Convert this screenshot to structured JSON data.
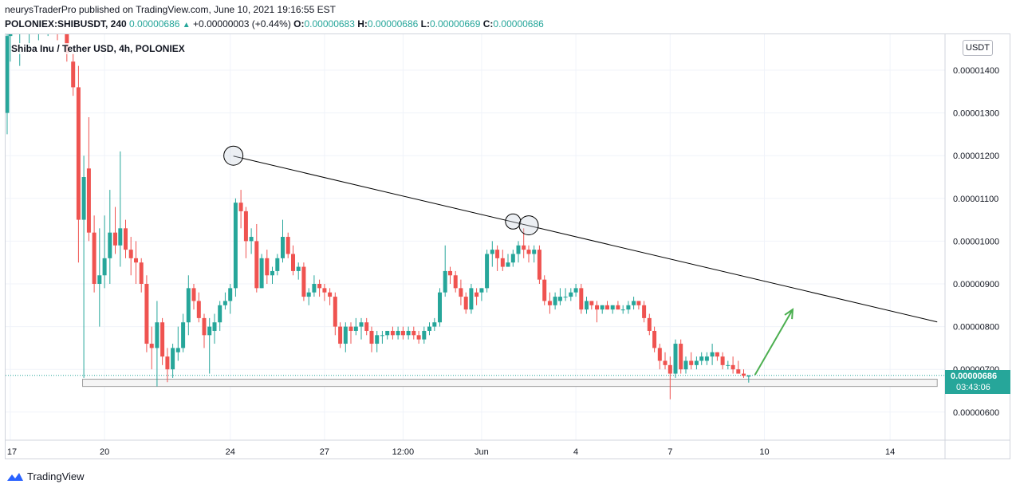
{
  "header": {
    "published_line": "neurysTraderPro published on TradingView.com, June 10, 2021 19:16:55 EST",
    "symbol": "POLONIEX:SHIBUSDT, 240",
    "last": "0.00000686",
    "change": "+0.00000003 (+0.44%)",
    "o_label": "O:",
    "o": "0.00000683",
    "h_label": "H:",
    "h": "0.00000686",
    "l_label": "L:",
    "l": "0.00000669",
    "c_label": "C:",
    "c": "0.00000686"
  },
  "legend": {
    "title": "Shiba Inu / Tether USD, 4h, POLONIEX"
  },
  "price_scale": {
    "currency": "USDT",
    "last_price": "0.00000686",
    "countdown": "03:43:06"
  },
  "footer": {
    "brand": "TradingView"
  },
  "colors": {
    "up": "#26a69a",
    "down": "#ef5350",
    "arrow": "#4caf50",
    "line": "#000000"
  },
  "chart_data": {
    "type": "candlestick",
    "title": "Shiba Inu / Tether USD, 4h, POLONIEX",
    "ylim": [
      5.5e-06,
      1.51e-05
    ],
    "y_ticks": [
      "0.00001400",
      "0.00001300",
      "0.00001200",
      "0.00001100",
      "0.00001000",
      "0.00000900",
      "0.00000800",
      "0.00000700",
      "0.00000600"
    ],
    "y_tick_values": [
      1.4e-05,
      1.3e-05,
      1.2e-05,
      1.1e-05,
      1e-05,
      9e-06,
      8e-06,
      7e-06,
      6e-06
    ],
    "x_ticks": [
      {
        "label": "17",
        "day": 17
      },
      {
        "label": "20",
        "day": 20
      },
      {
        "label": "24",
        "day": 24
      },
      {
        "label": "27",
        "day": 27
      },
      {
        "label": "12:00",
        "day": 29.5
      },
      {
        "label": "Jun",
        "day": 32
      },
      {
        "label": "4",
        "day": 35
      },
      {
        "label": "7",
        "day": 38
      },
      {
        "label": "10",
        "day": 41
      },
      {
        "label": "14",
        "day": 45
      }
    ],
    "day_start": 16.85,
    "candles": [
      {
        "d": 16.9,
        "o": 1.3,
        "h": 1.49,
        "l": 1.25,
        "c": 1.48
      },
      {
        "d": 17.0,
        "o": 1.48,
        "h": 1.52,
        "l": 1.42,
        "c": 1.5
      },
      {
        "d": 17.3,
        "o": 1.49,
        "h": 1.52,
        "l": 1.41,
        "c": 1.5
      },
      {
        "d": 17.6,
        "o": 1.5,
        "h": 1.53,
        "l": 1.45,
        "c": 1.51
      },
      {
        "d": 17.9,
        "o": 1.5,
        "h": 1.53,
        "l": 1.47,
        "c": 1.52
      },
      {
        "d": 18.2,
        "o": 1.51,
        "h": 1.54,
        "l": 1.48,
        "c": 1.52
      },
      {
        "d": 18.5,
        "o": 1.52,
        "h": 1.55,
        "l": 1.47,
        "c": 1.51
      },
      {
        "d": 18.8,
        "o": 1.5,
        "h": 1.52,
        "l": 1.42,
        "c": 1.44
      },
      {
        "d": 19.0,
        "o": 1.42,
        "h": 1.44,
        "l": 1.34,
        "c": 1.36
      },
      {
        "d": 19.17,
        "o": 1.36,
        "h": 1.41,
        "l": 0.95,
        "c": 1.05
      },
      {
        "d": 19.34,
        "o": 1.05,
        "h": 1.2,
        "l": 0.68,
        "c": 1.15
      },
      {
        "d": 19.5,
        "o": 1.17,
        "h": 1.29,
        "l": 1.0,
        "c": 1.02
      },
      {
        "d": 19.67,
        "o": 1.02,
        "h": 1.06,
        "l": 0.88,
        "c": 0.9
      },
      {
        "d": 19.84,
        "o": 0.9,
        "h": 1.03,
        "l": 0.8,
        "c": 0.92
      },
      {
        "d": 20.0,
        "o": 0.92,
        "h": 1.06,
        "l": 0.89,
        "c": 0.96
      },
      {
        "d": 20.17,
        "o": 0.96,
        "h": 1.12,
        "l": 0.9,
        "c": 1.02
      },
      {
        "d": 20.34,
        "o": 1.02,
        "h": 1.08,
        "l": 0.97,
        "c": 0.99
      },
      {
        "d": 20.5,
        "o": 0.99,
        "h": 1.21,
        "l": 0.94,
        "c": 1.03
      },
      {
        "d": 20.67,
        "o": 1.03,
        "h": 1.05,
        "l": 0.96,
        "c": 0.98
      },
      {
        "d": 20.84,
        "o": 0.98,
        "h": 1.01,
        "l": 0.92,
        "c": 0.96
      },
      {
        "d": 21.0,
        "o": 0.96,
        "h": 1.0,
        "l": 0.9,
        "c": 0.95
      },
      {
        "d": 21.17,
        "o": 0.95,
        "h": 0.96,
        "l": 0.88,
        "c": 0.9
      },
      {
        "d": 21.34,
        "o": 0.9,
        "h": 0.92,
        "l": 0.74,
        "c": 0.76
      },
      {
        "d": 21.5,
        "o": 0.76,
        "h": 0.8,
        "l": 0.7,
        "c": 0.75
      },
      {
        "d": 21.67,
        "o": 0.75,
        "h": 0.86,
        "l": 0.66,
        "c": 0.81
      },
      {
        "d": 21.84,
        "o": 0.81,
        "h": 0.82,
        "l": 0.71,
        "c": 0.73
      },
      {
        "d": 22.0,
        "o": 0.73,
        "h": 0.75,
        "l": 0.67,
        "c": 0.7
      },
      {
        "d": 22.17,
        "o": 0.7,
        "h": 0.76,
        "l": 0.68,
        "c": 0.75
      },
      {
        "d": 22.34,
        "o": 0.74,
        "h": 0.8,
        "l": 0.72,
        "c": 0.75
      },
      {
        "d": 22.5,
        "o": 0.75,
        "h": 0.83,
        "l": 0.74,
        "c": 0.81
      },
      {
        "d": 22.67,
        "o": 0.81,
        "h": 0.92,
        "l": 0.78,
        "c": 0.89
      },
      {
        "d": 22.84,
        "o": 0.89,
        "h": 0.9,
        "l": 0.84,
        "c": 0.86
      },
      {
        "d": 23.0,
        "o": 0.86,
        "h": 0.88,
        "l": 0.81,
        "c": 0.82
      },
      {
        "d": 23.17,
        "o": 0.82,
        "h": 0.83,
        "l": 0.75,
        "c": 0.78
      },
      {
        "d": 23.34,
        "o": 0.78,
        "h": 0.82,
        "l": 0.69,
        "c": 0.8
      },
      {
        "d": 23.5,
        "o": 0.79,
        "h": 0.83,
        "l": 0.76,
        "c": 0.81
      },
      {
        "d": 23.67,
        "o": 0.81,
        "h": 0.86,
        "l": 0.79,
        "c": 0.85
      },
      {
        "d": 23.84,
        "o": 0.85,
        "h": 0.88,
        "l": 0.84,
        "c": 0.86
      },
      {
        "d": 24.0,
        "o": 0.86,
        "h": 0.9,
        "l": 0.83,
        "c": 0.89
      },
      {
        "d": 24.17,
        "o": 0.89,
        "h": 1.1,
        "l": 0.87,
        "c": 1.09
      },
      {
        "d": 24.34,
        "o": 1.09,
        "h": 1.12,
        "l": 1.03,
        "c": 1.07
      },
      {
        "d": 24.5,
        "o": 1.07,
        "h": 1.08,
        "l": 0.96,
        "c": 1.0
      },
      {
        "d": 24.67,
        "o": 1.0,
        "h": 1.03,
        "l": 0.97,
        "c": 1.01
      },
      {
        "d": 24.84,
        "o": 1.0,
        "h": 1.04,
        "l": 0.88,
        "c": 0.89
      },
      {
        "d": 25.0,
        "o": 0.89,
        "h": 0.97,
        "l": 0.89,
        "c": 0.96
      },
      {
        "d": 25.17,
        "o": 0.96,
        "h": 0.98,
        "l": 0.9,
        "c": 0.92
      },
      {
        "d": 25.34,
        "o": 0.92,
        "h": 0.94,
        "l": 0.9,
        "c": 0.93
      },
      {
        "d": 25.5,
        "o": 0.93,
        "h": 0.97,
        "l": 0.92,
        "c": 0.96
      },
      {
        "d": 25.67,
        "o": 0.96,
        "h": 1.05,
        "l": 0.95,
        "c": 1.01
      },
      {
        "d": 25.84,
        "o": 1.01,
        "h": 1.02,
        "l": 0.96,
        "c": 0.97
      },
      {
        "d": 26.0,
        "o": 0.97,
        "h": 0.99,
        "l": 0.92,
        "c": 0.93
      },
      {
        "d": 26.17,
        "o": 0.93,
        "h": 0.95,
        "l": 0.91,
        "c": 0.94
      },
      {
        "d": 26.34,
        "o": 0.94,
        "h": 0.95,
        "l": 0.86,
        "c": 0.87
      },
      {
        "d": 26.5,
        "o": 0.87,
        "h": 0.89,
        "l": 0.85,
        "c": 0.88
      },
      {
        "d": 26.67,
        "o": 0.88,
        "h": 0.92,
        "l": 0.87,
        "c": 0.9
      },
      {
        "d": 26.84,
        "o": 0.9,
        "h": 0.91,
        "l": 0.87,
        "c": 0.89
      },
      {
        "d": 27.0,
        "o": 0.89,
        "h": 0.9,
        "l": 0.86,
        "c": 0.88
      },
      {
        "d": 27.17,
        "o": 0.88,
        "h": 0.89,
        "l": 0.85,
        "c": 0.87
      },
      {
        "d": 27.34,
        "o": 0.87,
        "h": 0.88,
        "l": 0.78,
        "c": 0.8
      },
      {
        "d": 27.5,
        "o": 0.8,
        "h": 0.81,
        "l": 0.75,
        "c": 0.76
      },
      {
        "d": 27.67,
        "o": 0.76,
        "h": 0.81,
        "l": 0.74,
        "c": 0.8
      },
      {
        "d": 27.84,
        "o": 0.8,
        "h": 0.81,
        "l": 0.76,
        "c": 0.79
      },
      {
        "d": 28.0,
        "o": 0.79,
        "h": 0.82,
        "l": 0.78,
        "c": 0.8
      },
      {
        "d": 28.17,
        "o": 0.8,
        "h": 0.82,
        "l": 0.77,
        "c": 0.81
      },
      {
        "d": 28.34,
        "o": 0.81,
        "h": 0.82,
        "l": 0.78,
        "c": 0.79
      },
      {
        "d": 28.5,
        "o": 0.79,
        "h": 0.8,
        "l": 0.74,
        "c": 0.76
      },
      {
        "d": 28.67,
        "o": 0.76,
        "h": 0.79,
        "l": 0.74,
        "c": 0.78
      },
      {
        "d": 28.84,
        "o": 0.78,
        "h": 0.79,
        "l": 0.76,
        "c": 0.78
      },
      {
        "d": 29.0,
        "o": 0.78,
        "h": 0.79,
        "l": 0.77,
        "c": 0.79
      },
      {
        "d": 29.17,
        "o": 0.79,
        "h": 0.8,
        "l": 0.77,
        "c": 0.78
      },
      {
        "d": 29.34,
        "o": 0.78,
        "h": 0.8,
        "l": 0.77,
        "c": 0.79
      },
      {
        "d": 29.5,
        "o": 0.79,
        "h": 0.8,
        "l": 0.77,
        "c": 0.78
      },
      {
        "d": 29.67,
        "o": 0.78,
        "h": 0.8,
        "l": 0.77,
        "c": 0.79
      },
      {
        "d": 29.84,
        "o": 0.79,
        "h": 0.8,
        "l": 0.77,
        "c": 0.78
      },
      {
        "d": 30.0,
        "o": 0.78,
        "h": 0.79,
        "l": 0.76,
        "c": 0.77
      },
      {
        "d": 30.17,
        "o": 0.77,
        "h": 0.8,
        "l": 0.76,
        "c": 0.79
      },
      {
        "d": 30.34,
        "o": 0.79,
        "h": 0.81,
        "l": 0.78,
        "c": 0.8
      },
      {
        "d": 30.5,
        "o": 0.8,
        "h": 0.82,
        "l": 0.79,
        "c": 0.81
      },
      {
        "d": 30.67,
        "o": 0.81,
        "h": 0.89,
        "l": 0.8,
        "c": 0.88
      },
      {
        "d": 30.84,
        "o": 0.88,
        "h": 0.99,
        "l": 0.87,
        "c": 0.93
      },
      {
        "d": 31.0,
        "o": 0.93,
        "h": 0.94,
        "l": 0.9,
        "c": 0.92
      },
      {
        "d": 31.17,
        "o": 0.92,
        "h": 0.93,
        "l": 0.88,
        "c": 0.89
      },
      {
        "d": 31.34,
        "o": 0.89,
        "h": 0.91,
        "l": 0.85,
        "c": 0.87
      },
      {
        "d": 31.5,
        "o": 0.87,
        "h": 0.88,
        "l": 0.83,
        "c": 0.84
      },
      {
        "d": 31.67,
        "o": 0.84,
        "h": 0.9,
        "l": 0.83,
        "c": 0.89
      },
      {
        "d": 31.84,
        "o": 0.88,
        "h": 0.89,
        "l": 0.85,
        "c": 0.87
      },
      {
        "d": 32.0,
        "o": 0.88,
        "h": 0.89,
        "l": 0.86,
        "c": 0.89
      },
      {
        "d": 32.17,
        "o": 0.89,
        "h": 0.98,
        "l": 0.88,
        "c": 0.97
      },
      {
        "d": 32.34,
        "o": 0.97,
        "h": 1.0,
        "l": 0.94,
        "c": 0.98
      },
      {
        "d": 32.5,
        "o": 0.98,
        "h": 0.99,
        "l": 0.93,
        "c": 0.96
      },
      {
        "d": 32.67,
        "o": 0.96,
        "h": 0.98,
        "l": 0.93,
        "c": 0.94
      },
      {
        "d": 32.84,
        "o": 0.94,
        "h": 0.97,
        "l": 0.94,
        "c": 0.95
      },
      {
        "d": 33.0,
        "o": 0.95,
        "h": 0.98,
        "l": 0.94,
        "c": 0.97
      },
      {
        "d": 33.17,
        "o": 0.97,
        "h": 1.0,
        "l": 0.95,
        "c": 0.99
      },
      {
        "d": 33.34,
        "o": 0.99,
        "h": 1.03,
        "l": 0.96,
        "c": 0.98
      },
      {
        "d": 33.5,
        "o": 0.98,
        "h": 0.99,
        "l": 0.95,
        "c": 0.97
      },
      {
        "d": 33.67,
        "o": 0.97,
        "h": 0.99,
        "l": 0.95,
        "c": 0.98
      },
      {
        "d": 33.84,
        "o": 0.98,
        "h": 0.99,
        "l": 0.9,
        "c": 0.91
      },
      {
        "d": 34.0,
        "o": 0.91,
        "h": 0.92,
        "l": 0.85,
        "c": 0.86
      },
      {
        "d": 34.17,
        "o": 0.86,
        "h": 0.88,
        "l": 0.83,
        "c": 0.85
      },
      {
        "d": 34.34,
        "o": 0.85,
        "h": 0.88,
        "l": 0.84,
        "c": 0.87
      },
      {
        "d": 34.5,
        "o": 0.86,
        "h": 0.89,
        "l": 0.85,
        "c": 0.87
      },
      {
        "d": 34.67,
        "o": 0.87,
        "h": 0.89,
        "l": 0.86,
        "c": 0.87
      },
      {
        "d": 34.84,
        "o": 0.87,
        "h": 0.89,
        "l": 0.86,
        "c": 0.88
      },
      {
        "d": 35.0,
        "o": 0.88,
        "h": 0.9,
        "l": 0.87,
        "c": 0.89
      },
      {
        "d": 35.17,
        "o": 0.89,
        "h": 0.9,
        "l": 0.83,
        "c": 0.84
      },
      {
        "d": 35.34,
        "o": 0.84,
        "h": 0.87,
        "l": 0.83,
        "c": 0.86
      },
      {
        "d": 35.5,
        "o": 0.86,
        "h": 0.86,
        "l": 0.84,
        "c": 0.85
      },
      {
        "d": 35.67,
        "o": 0.85,
        "h": 0.86,
        "l": 0.81,
        "c": 0.84
      },
      {
        "d": 35.84,
        "o": 0.84,
        "h": 0.85,
        "l": 0.83,
        "c": 0.85
      },
      {
        "d": 36.0,
        "o": 0.85,
        "h": 0.86,
        "l": 0.84,
        "c": 0.84
      },
      {
        "d": 36.17,
        "o": 0.84,
        "h": 0.85,
        "l": 0.83,
        "c": 0.85
      },
      {
        "d": 36.34,
        "o": 0.85,
        "h": 0.86,
        "l": 0.84,
        "c": 0.84
      },
      {
        "d": 36.5,
        "o": 0.84,
        "h": 0.85,
        "l": 0.83,
        "c": 0.84
      },
      {
        "d": 36.67,
        "o": 0.84,
        "h": 0.86,
        "l": 0.83,
        "c": 0.85
      },
      {
        "d": 36.84,
        "o": 0.85,
        "h": 0.87,
        "l": 0.84,
        "c": 0.86
      },
      {
        "d": 37.0,
        "o": 0.86,
        "h": 0.86,
        "l": 0.84,
        "c": 0.85
      },
      {
        "d": 37.17,
        "o": 0.85,
        "h": 0.86,
        "l": 0.81,
        "c": 0.82
      },
      {
        "d": 37.34,
        "o": 0.82,
        "h": 0.83,
        "l": 0.78,
        "c": 0.79
      },
      {
        "d": 37.5,
        "o": 0.79,
        "h": 0.8,
        "l": 0.74,
        "c": 0.75
      },
      {
        "d": 37.67,
        "o": 0.75,
        "h": 0.76,
        "l": 0.7,
        "c": 0.72
      },
      {
        "d": 37.84,
        "o": 0.72,
        "h": 0.74,
        "l": 0.7,
        "c": 0.71
      },
      {
        "d": 38.0,
        "o": 0.71,
        "h": 0.73,
        "l": 0.63,
        "c": 0.69
      },
      {
        "d": 38.17,
        "o": 0.69,
        "h": 0.77,
        "l": 0.68,
        "c": 0.76
      },
      {
        "d": 38.34,
        "o": 0.76,
        "h": 0.77,
        "l": 0.69,
        "c": 0.7
      },
      {
        "d": 38.5,
        "o": 0.7,
        "h": 0.73,
        "l": 0.69,
        "c": 0.72
      },
      {
        "d": 38.67,
        "o": 0.72,
        "h": 0.74,
        "l": 0.7,
        "c": 0.71
      },
      {
        "d": 38.84,
        "o": 0.71,
        "h": 0.73,
        "l": 0.7,
        "c": 0.72
      },
      {
        "d": 39.0,
        "o": 0.72,
        "h": 0.74,
        "l": 0.71,
        "c": 0.73
      },
      {
        "d": 39.17,
        "o": 0.72,
        "h": 0.74,
        "l": 0.71,
        "c": 0.73
      },
      {
        "d": 39.34,
        "o": 0.73,
        "h": 0.76,
        "l": 0.71,
        "c": 0.74
      },
      {
        "d": 39.5,
        "o": 0.74,
        "h": 0.74,
        "l": 0.72,
        "c": 0.73
      },
      {
        "d": 39.67,
        "o": 0.73,
        "h": 0.74,
        "l": 0.7,
        "c": 0.71
      },
      {
        "d": 39.84,
        "o": 0.71,
        "h": 0.72,
        "l": 0.7,
        "c": 0.71
      },
      {
        "d": 40.0,
        "o": 0.71,
        "h": 0.73,
        "l": 0.69,
        "c": 0.7
      },
      {
        "d": 40.17,
        "o": 0.7,
        "h": 0.72,
        "l": 0.69,
        "c": 0.69
      },
      {
        "d": 40.34,
        "o": 0.69,
        "h": 0.7,
        "l": 0.68,
        "c": 0.685
      },
      {
        "d": 40.5,
        "o": 0.683,
        "h": 0.686,
        "l": 0.669,
        "c": 0.686
      }
    ],
    "scale_note_multiplier": 1e-05,
    "trendline": {
      "from": {
        "d": 24.1,
        "p": 1.199e-05
      },
      "to": {
        "d": 46.5,
        "p": 8.11e-06
      }
    },
    "support_zone": {
      "from_d": 19.3,
      "to_d": 46.5,
      "low": 6.6e-06,
      "high": 6.77e-06
    },
    "last_price_line": 6.86e-06,
    "circles": [
      {
        "d": 24.1,
        "p": 1.2e-05,
        "size": "large"
      },
      {
        "d": 33.0,
        "p": 1.046e-05,
        "size": "small"
      },
      {
        "d": 33.5,
        "p": 1.037e-05,
        "size": "large"
      }
    ],
    "arrow": {
      "from": {
        "d": 40.7,
        "p": 6.87e-06
      },
      "to": {
        "d": 41.9,
        "p": 8.4e-06
      }
    }
  }
}
